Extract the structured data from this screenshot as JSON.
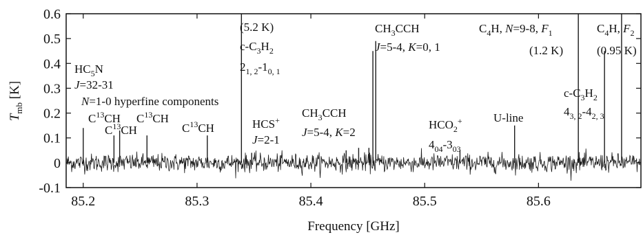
{
  "chart_data": {
    "type": "line",
    "xlabel": "Frequency [GHz]",
    "ylabel": {
      "main": "T",
      "sub": "mb",
      "unit": " [K]"
    },
    "xlim": [
      85.185,
      85.69
    ],
    "ylim": [
      -0.1,
      0.6
    ],
    "xticks": [
      85.2,
      85.3,
      85.4,
      85.5,
      85.6
    ],
    "yticks": [
      -0.1,
      0,
      0.1,
      0.2,
      0.3,
      0.4,
      0.5,
      0.6
    ],
    "xtick_labels": [
      "85.2",
      "85.3",
      "85.4",
      "85.5",
      "85.6"
    ],
    "ytick_labels": [
      "-0.1",
      "0",
      "0.1",
      "0.2",
      "0.3",
      "0.4",
      "0.5",
      "0.6"
    ],
    "grid": false,
    "noise_rms": 0.018,
    "series": [
      {
        "lines": [
          {
            "x": 85.2,
            "y": 0.14
          },
          {
            "x": 85.227,
            "y": 0.11
          },
          {
            "x": 85.232,
            "y": 0.13
          },
          {
            "x": 85.256,
            "y": 0.11
          },
          {
            "x": 85.309,
            "y": 0.11
          },
          {
            "x": 85.339,
            "y": 0.6
          },
          {
            "x": 85.348,
            "y": 0.04
          },
          {
            "x": 85.431,
            "y": 0.05
          },
          {
            "x": 85.442,
            "y": 0.06
          },
          {
            "x": 85.451,
            "y": 0.06
          },
          {
            "x": 85.4545,
            "y": 0.45
          },
          {
            "x": 85.457,
            "y": 0.49
          },
          {
            "x": 85.531,
            "y": 0.05
          },
          {
            "x": 85.579,
            "y": 0.15
          },
          {
            "x": 85.635,
            "y": 0.6
          },
          {
            "x": 85.658,
            "y": 0.45
          },
          {
            "x": 85.673,
            "y": 0.6
          }
        ]
      }
    ],
    "annotations": [
      {
        "id": "hc5n",
        "parts": [
          [
            "HC",
            ""
          ],
          [
            "5",
            "sub"
          ],
          [
            "N",
            ""
          ]
        ]
      },
      {
        "id": "hc5n-trans",
        "parts": [
          [
            "J",
            "i"
          ],
          [
            "=32-31",
            ""
          ]
        ]
      },
      {
        "id": "hyperfine",
        "parts": [
          [
            "N",
            "i"
          ],
          [
            "=1-0 hyperfine components",
            ""
          ]
        ]
      },
      {
        "id": "c13ch-1",
        "parts": [
          [
            "C",
            ""
          ],
          [
            "13",
            "sup"
          ],
          [
            "CH",
            ""
          ]
        ]
      },
      {
        "id": "c13ch-2",
        "parts": [
          [
            "C",
            ""
          ],
          [
            "13",
            "sup"
          ],
          [
            "CH",
            ""
          ]
        ]
      },
      {
        "id": "c13ch-3",
        "parts": [
          [
            "C",
            ""
          ],
          [
            "13",
            "sup"
          ],
          [
            "CH",
            ""
          ]
        ]
      },
      {
        "id": "c13ch-4",
        "parts": [
          [
            "C",
            ""
          ],
          [
            "13",
            "sup"
          ],
          [
            "CH",
            ""
          ]
        ]
      },
      {
        "id": "temp-52",
        "parts": [
          [
            "(5.2 K)",
            ""
          ]
        ]
      },
      {
        "id": "c3h2-a",
        "parts": [
          [
            "c-C",
            ""
          ],
          [
            "3",
            "sub"
          ],
          [
            "H",
            ""
          ],
          [
            "2",
            "sub"
          ]
        ]
      },
      {
        "id": "c3h2-a-trans",
        "parts": [
          [
            "2",
            ""
          ],
          [
            "1, 2",
            "sub"
          ],
          [
            "-1",
            ""
          ],
          [
            "0, 1",
            "sub"
          ]
        ]
      },
      {
        "id": "hcs",
        "parts": [
          [
            "HCS",
            ""
          ],
          [
            "+",
            "sup"
          ]
        ]
      },
      {
        "id": "hcs-trans",
        "parts": [
          [
            "J",
            "i"
          ],
          [
            "=2-1",
            ""
          ]
        ]
      },
      {
        "id": "ch3cch-k2",
        "parts": [
          [
            "CH",
            ""
          ],
          [
            "3",
            "sub"
          ],
          [
            "CCH",
            ""
          ]
        ]
      },
      {
        "id": "ch3cch-k2-trans",
        "parts": [
          [
            "J",
            "i"
          ],
          [
            "=5-4, ",
            ""
          ],
          [
            "K",
            "i"
          ],
          [
            "=2",
            ""
          ]
        ]
      },
      {
        "id": "ch3cch-k01",
        "parts": [
          [
            "CH",
            ""
          ],
          [
            "3",
            "sub"
          ],
          [
            "CCH",
            ""
          ]
        ]
      },
      {
        "id": "ch3cch-k01-trans",
        "parts": [
          [
            "J",
            "i"
          ],
          [
            "=5-4, ",
            ""
          ],
          [
            "K",
            "i"
          ],
          [
            "=0, 1",
            ""
          ]
        ]
      },
      {
        "id": "hco2",
        "parts": [
          [
            "HCO",
            ""
          ],
          [
            "2",
            "sub"
          ],
          [
            "+",
            "sup"
          ]
        ]
      },
      {
        "id": "hco2-trans",
        "parts": [
          [
            "4",
            ""
          ],
          [
            "04",
            "sub"
          ],
          [
            "-3",
            ""
          ],
          [
            "03",
            "sub"
          ]
        ]
      },
      {
        "id": "uline",
        "parts": [
          [
            "U-line",
            ""
          ]
        ]
      },
      {
        "id": "c4h-a",
        "parts": [
          [
            "C",
            ""
          ],
          [
            "4",
            "sub"
          ],
          [
            "H, ",
            ""
          ],
          [
            "N",
            "i"
          ],
          [
            "=9-8, ",
            ""
          ],
          [
            "F",
            "i"
          ],
          [
            "1",
            "sub"
          ]
        ]
      },
      {
        "id": "temp-12",
        "parts": [
          [
            "(1.2 K)",
            ""
          ]
        ]
      },
      {
        "id": "c3h2-b",
        "parts": [
          [
            "c-C",
            ""
          ],
          [
            "3",
            "sub"
          ],
          [
            "H",
            ""
          ],
          [
            "2",
            "sub"
          ]
        ]
      },
      {
        "id": "c3h2-b-trans",
        "parts": [
          [
            "4",
            ""
          ],
          [
            "3, 2",
            "sub"
          ],
          [
            "-4",
            ""
          ],
          [
            "2, 3",
            "sub"
          ]
        ]
      },
      {
        "id": "c4h-b",
        "parts": [
          [
            "C",
            ""
          ],
          [
            "4",
            "sub"
          ],
          [
            "H, ",
            ""
          ],
          [
            "F",
            "i"
          ],
          [
            "2",
            "sub"
          ]
        ]
      },
      {
        "id": "temp-095",
        "parts": [
          [
            "(0.95 K)",
            ""
          ]
        ]
      }
    ]
  }
}
